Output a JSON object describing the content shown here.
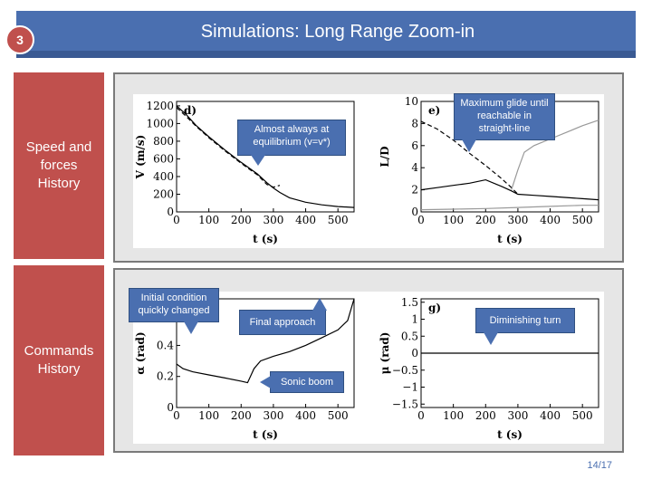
{
  "header": {
    "title": "Simulations: Long Range Zoom-in",
    "slide_badge": "3"
  },
  "sections": [
    {
      "label": "Speed and forces History"
    },
    {
      "label": "Commands History"
    }
  ],
  "callouts": {
    "equilibrium": "Almost always at equilibrium (v=v*)",
    "max_glide": "Maximum glide until reachable in straight-line",
    "initial_condition": "Initial condition quickly changed",
    "final_approach": "Final approach",
    "sonic_boom": "Sonic boom",
    "diminishing_turn": "Diminishing turn"
  },
  "footer": {
    "page": "14/17"
  },
  "chart_data": [
    {
      "type": "line",
      "panel_label": "d)",
      "xlabel": "t (s)",
      "ylabel": "V (m/s)",
      "xlim": [
        0,
        550
      ],
      "ylim": [
        0,
        1250
      ],
      "xticks": [
        0,
        100,
        200,
        300,
        400,
        500
      ],
      "yticks": [
        0,
        200,
        400,
        600,
        800,
        1000,
        1200
      ],
      "series": [
        {
          "style": "solid",
          "x": [
            0,
            30,
            60,
            100,
            150,
            200,
            250,
            280,
            300,
            320,
            350,
            400,
            450,
            500,
            550
          ],
          "y": [
            1200,
            1100,
            980,
            850,
            700,
            560,
            430,
            330,
            270,
            220,
            160,
            110,
            80,
            60,
            50
          ]
        },
        {
          "style": "dashed",
          "x": [
            0,
            30,
            60,
            100,
            150,
            200,
            250,
            280,
            300,
            320
          ],
          "y": [
            1180,
            1080,
            970,
            840,
            690,
            550,
            420,
            310,
            280,
            300
          ]
        }
      ]
    },
    {
      "type": "line",
      "panel_label": "e)",
      "xlabel": "t (s)",
      "ylabel": "L/D",
      "xlim": [
        0,
        550
      ],
      "ylim": [
        0,
        10
      ],
      "xticks": [
        0,
        100,
        200,
        300,
        400,
        500
      ],
      "yticks": [
        0,
        2,
        4,
        6,
        8,
        10
      ],
      "series": [
        {
          "style": "dashed",
          "x": [
            0,
            50,
            100,
            150,
            200,
            250,
            280,
            300
          ],
          "y": [
            8.2,
            7.5,
            6.5,
            5.3,
            4.2,
            3.0,
            2.2,
            1.6
          ]
        },
        {
          "style": "solid",
          "x": [
            0,
            50,
            100,
            150,
            200,
            250,
            280,
            300,
            350,
            400,
            450,
            500,
            550
          ],
          "y": [
            2.0,
            2.2,
            2.4,
            2.6,
            2.9,
            2.3,
            1.9,
            1.6,
            1.5,
            1.4,
            1.3,
            1.2,
            1.1
          ]
        },
        {
          "style": "gray",
          "x": [
            280,
            300,
            320,
            350,
            400,
            450,
            500,
            550
          ],
          "y": [
            2.0,
            3.8,
            5.4,
            6.0,
            6.6,
            7.2,
            7.8,
            8.3
          ]
        },
        {
          "style": "gray",
          "x": [
            0,
            100,
            200,
            300,
            400,
            500,
            550
          ],
          "y": [
            0.2,
            0.25,
            0.3,
            0.4,
            0.5,
            0.6,
            0.6
          ]
        }
      ]
    },
    {
      "type": "line",
      "panel_label": "",
      "xlabel": "t (s)",
      "ylabel": "α (rad)",
      "xlim": [
        0,
        550
      ],
      "ylim": [
        0,
        0.7
      ],
      "xticks": [
        0,
        100,
        200,
        300,
        400,
        500
      ],
      "yticks": [
        0.0,
        0.2,
        0.4,
        0.6
      ],
      "series": [
        {
          "style": "solid",
          "x": [
            0,
            20,
            50,
            100,
            150,
            200,
            220,
            240,
            260,
            300,
            350,
            400,
            450,
            500,
            530,
            550
          ],
          "y": [
            0.28,
            0.25,
            0.23,
            0.21,
            0.19,
            0.17,
            0.16,
            0.25,
            0.3,
            0.33,
            0.36,
            0.4,
            0.45,
            0.5,
            0.56,
            0.7
          ]
        }
      ]
    },
    {
      "type": "line",
      "panel_label": "g)",
      "xlabel": "t (s)",
      "ylabel": "μ (rad)",
      "xlim": [
        0,
        550
      ],
      "ylim": [
        -1.6,
        1.6
      ],
      "xticks": [
        0,
        100,
        200,
        300,
        400,
        500
      ],
      "yticks": [
        -1.5,
        -1.0,
        -0.5,
        0.0,
        0.5,
        1.0,
        1.5
      ],
      "series": [
        {
          "style": "solid",
          "x": [
            0,
            50,
            100,
            150,
            200,
            250,
            300,
            350,
            400,
            450,
            500,
            550
          ],
          "y": [
            0.0,
            0.0,
            0.0,
            0.0,
            0.0,
            0.0,
            0.0,
            0.0,
            0.0,
            0.0,
            0.0,
            0.0
          ]
        }
      ]
    }
  ]
}
